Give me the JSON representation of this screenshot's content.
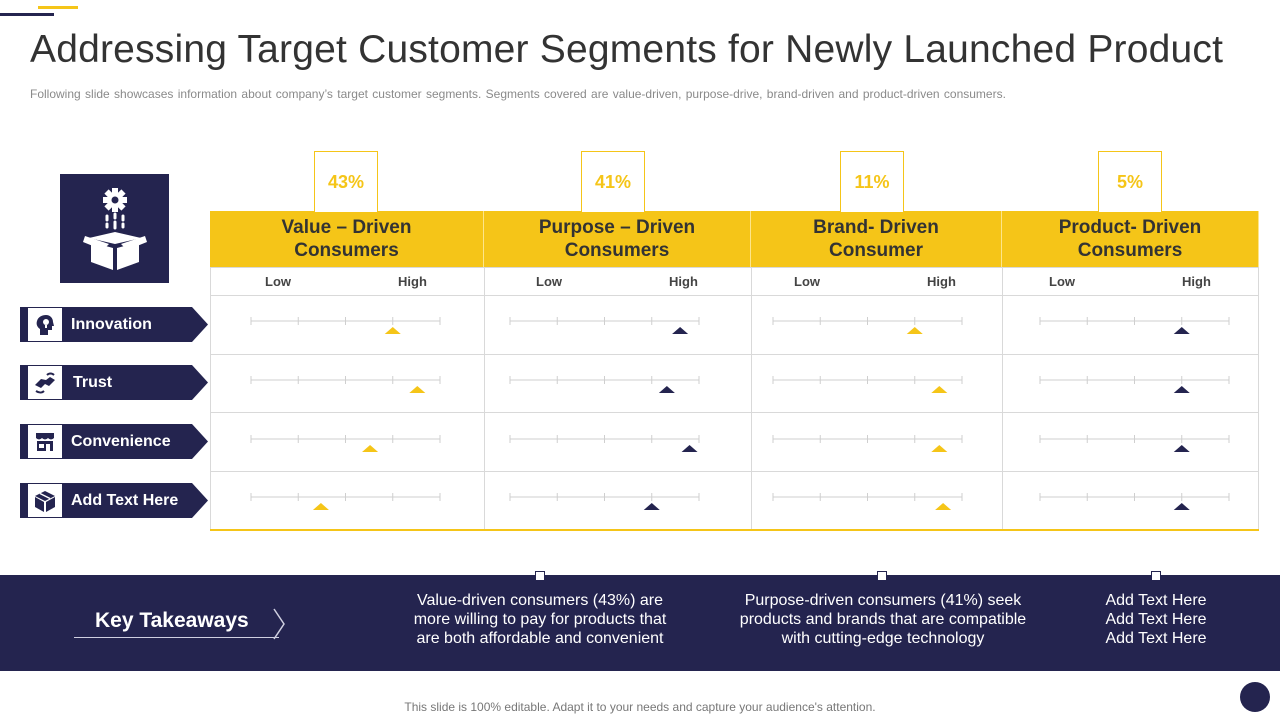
{
  "title": "Addressing Target Customer Segments for Newly Launched Product",
  "subtitle": "Following slide showcases information about company’s target customer segments. Segments covered are value-driven,  purpose-drive,  brand-driven and product-driven consumers.",
  "colors": {
    "navy": "#24244f",
    "yellow": "#f5c518"
  },
  "segments": [
    {
      "percent": "43%",
      "name": "Value – Driven Consumers",
      "low": "Low",
      "high": "High"
    },
    {
      "percent": "41%",
      "name": "Purpose – Driven Consumers",
      "low": "Low",
      "high": "High"
    },
    {
      "percent": "11%",
      "name": "Brand- Driven Consumer",
      "low": "Low",
      "high": "High"
    },
    {
      "percent": "5%",
      "name": "Product- Driven Consumers",
      "low": "Low",
      "high": "High"
    }
  ],
  "rows": [
    {
      "label": "Innovation",
      "icon": "lightbulb-head-icon"
    },
    {
      "label": "Trust",
      "icon": "handshake-icon"
    },
    {
      "label": "Convenience",
      "icon": "store-icon"
    },
    {
      "label": "Add Text Here",
      "icon": "cube-icon"
    }
  ],
  "ratings_scale": "fraction of scale from Low (0) to High (1)",
  "ratings": [
    [
      0.75,
      0.9,
      0.75,
      0.75
    ],
    [
      0.88,
      0.83,
      0.88,
      0.75
    ],
    [
      0.63,
      0.95,
      0.88,
      0.75
    ],
    [
      0.37,
      0.75,
      0.9,
      0.75
    ]
  ],
  "key_takeaways": {
    "label": "Key Takeaways",
    "items": [
      "Value-driven consumers (43%) are more willing to pay for products that are both affordable and convenient",
      "Purpose-driven consumers (41%) seek products and brands that are compatible with cutting-edge technology",
      "Add Text Here Add Text Here Add Text Here"
    ]
  },
  "footer": "This slide is 100% editable. Adapt it to your needs and capture your audience's attention."
}
